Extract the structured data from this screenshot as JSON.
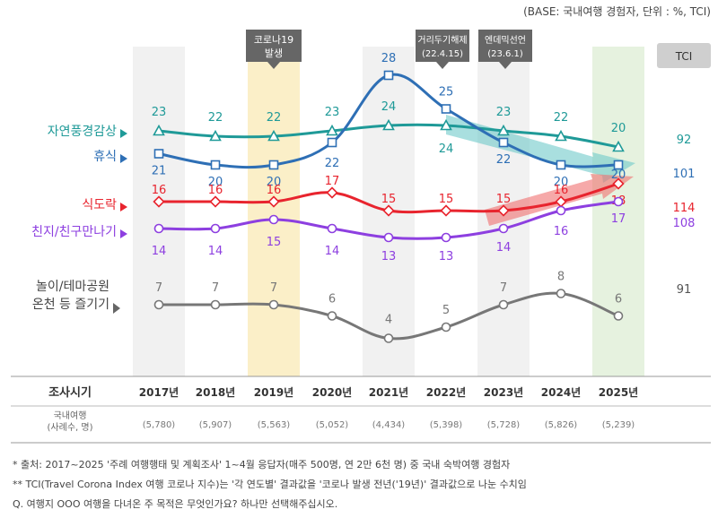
{
  "base_note": "(BASE: 국내여행 경험자, 단위 : %, TCI)",
  "tci_header": "TCI",
  "events": [
    {
      "label_lines": [
        "코로나19",
        "발생"
      ],
      "year": "2019"
    },
    {
      "label_lines": [
        "거리두기해제",
        "(22.4.15)"
      ],
      "year": "2022"
    },
    {
      "label_lines": [
        "엔데믹선언",
        "(23.6.1)"
      ],
      "year": "2023"
    }
  ],
  "colors": {
    "nature": "#1f9a98",
    "rest": "#2e6fb5",
    "food": "#e8242e",
    "friends": "#8d3fe0",
    "play": "#777777",
    "highlight_2019": "#fbefc8",
    "highlight_2025": "#e6f2df",
    "column_shade": "#f1f1f1"
  },
  "table": {
    "header": "조사시기",
    "sample_label_lines": [
      "국내여행",
      "(사례수, 명)"
    ],
    "samples": [
      "(5,780)",
      "(5,907)",
      "(5,563)",
      "(5,052)",
      "(4,434)",
      "(5,398)",
      "(5,728)",
      "(5,826)",
      "(5,239)"
    ]
  },
  "footnotes": [
    "* 출처: 2017~2025 '주례 여행행태 및 계획조사' 1~4월 응답자(매주 500명, 연 2만 6천 명) 중 국내 숙박여행 경험자",
    "** TCI(Travel Corona Index 여행 코로나 지수)는 '각 연도별' 결과값을 '코로나 발생 전년('19년)' 결과값으로 나눈 수치임",
    "Q. 여행지 OOO 여행을 다녀온 주 목적은 무엇인가요? 하나만 선택해주십시오."
  ],
  "chart_data": {
    "type": "line",
    "categories": [
      "2017년",
      "2018년",
      "2019년",
      "2020년",
      "2021년",
      "2022년",
      "2023년",
      "2024년",
      "2025년"
    ],
    "series": [
      {
        "key": "nature",
        "name": "자연풍경감상",
        "marker": "triangle",
        "values": [
          23,
          22,
          22,
          23,
          24,
          24,
          23,
          22,
          20
        ],
        "tci": "92"
      },
      {
        "key": "rest",
        "name": "휴식",
        "marker": "square",
        "values": [
          21,
          20,
          20,
          22,
          28,
          25,
          22,
          20,
          20
        ],
        "tci": "101"
      },
      {
        "key": "food",
        "name": "식도락",
        "marker": "diamond",
        "values": [
          16,
          16,
          16,
          17,
          15,
          15,
          15,
          16,
          18
        ],
        "tci": "114"
      },
      {
        "key": "friends",
        "name": "친지/친구만나기",
        "marker": "circle",
        "values": [
          14,
          14,
          15,
          14,
          13,
          13,
          14,
          16,
          17
        ],
        "tci": "108"
      },
      {
        "key": "play",
        "name_lines": [
          "놀이/테마공원",
          "온천 등 즐기기"
        ],
        "marker": "circle",
        "values": [
          7,
          7,
          7,
          6,
          4,
          5,
          7,
          8,
          6
        ],
        "tci": "91"
      }
    ]
  }
}
